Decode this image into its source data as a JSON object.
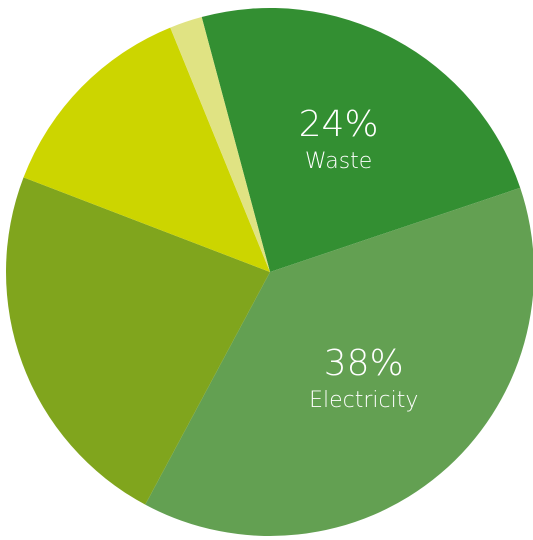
{
  "chart_data": {
    "type": "pie",
    "slices": [
      {
        "label": "Waste",
        "value": 24,
        "value_label": "24%",
        "color": "#338f32"
      },
      {
        "label": "Electricity",
        "value": 38,
        "value_label": "38%",
        "color": "#63a052"
      },
      {
        "label": "",
        "value": 23,
        "value_label": "",
        "color": "#80a51d"
      },
      {
        "label": "",
        "value": 13,
        "value_label": "",
        "color": "#ccd500"
      },
      {
        "label": "",
        "value": 2,
        "value_label": "",
        "color": "#e0e383"
      }
    ]
  }
}
